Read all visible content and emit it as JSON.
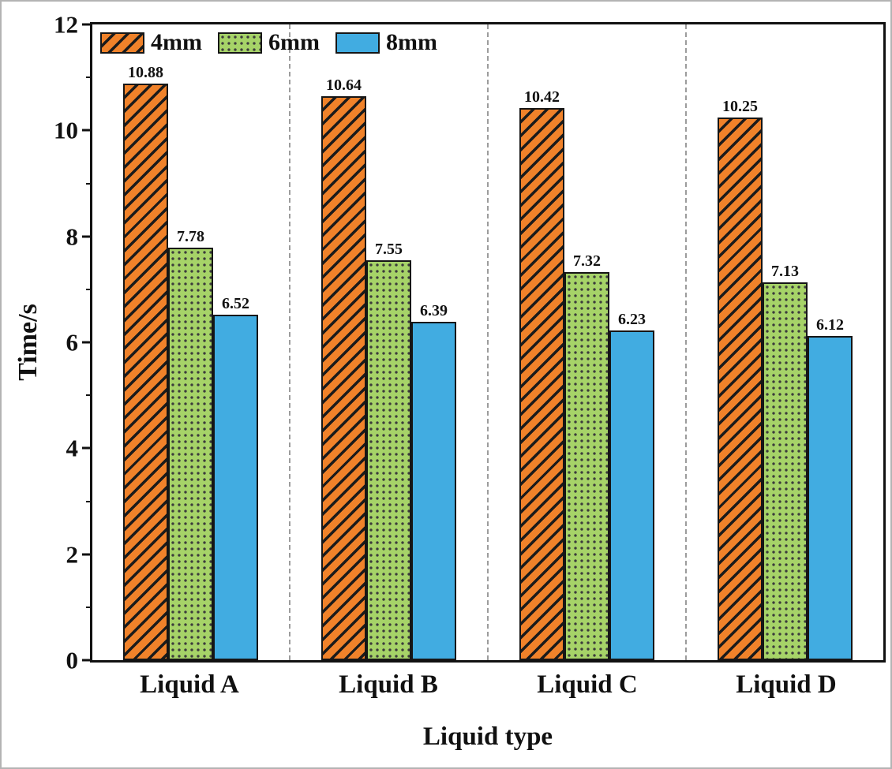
{
  "chart_data": {
    "type": "bar",
    "title": "",
    "xlabel": "Liquid type",
    "ylabel": "Time/s",
    "categories": [
      "Liquid A",
      "Liquid B",
      "Liquid C",
      "Liquid D"
    ],
    "series": [
      {
        "name": "4mm",
        "values": [
          10.88,
          10.64,
          10.42,
          10.25
        ],
        "color": "#F0822A",
        "pattern": "diagonal-hatch"
      },
      {
        "name": "6mm",
        "values": [
          7.78,
          7.55,
          7.32,
          7.13
        ],
        "color": "#A6D368",
        "pattern": "dots"
      },
      {
        "name": "8mm",
        "values": [
          6.52,
          6.39,
          6.23,
          6.12
        ],
        "color": "#41ACE1",
        "pattern": "solid"
      }
    ],
    "ylim": [
      0,
      12
    ],
    "yticks": [
      0,
      2,
      4,
      6,
      8,
      10,
      12
    ],
    "yticks_minor": [
      1,
      3,
      5,
      7,
      9,
      11
    ],
    "bar_value_labels": true,
    "grid": "dashed vertical separators between category groups",
    "legend_position": "top-left inside plot"
  }
}
